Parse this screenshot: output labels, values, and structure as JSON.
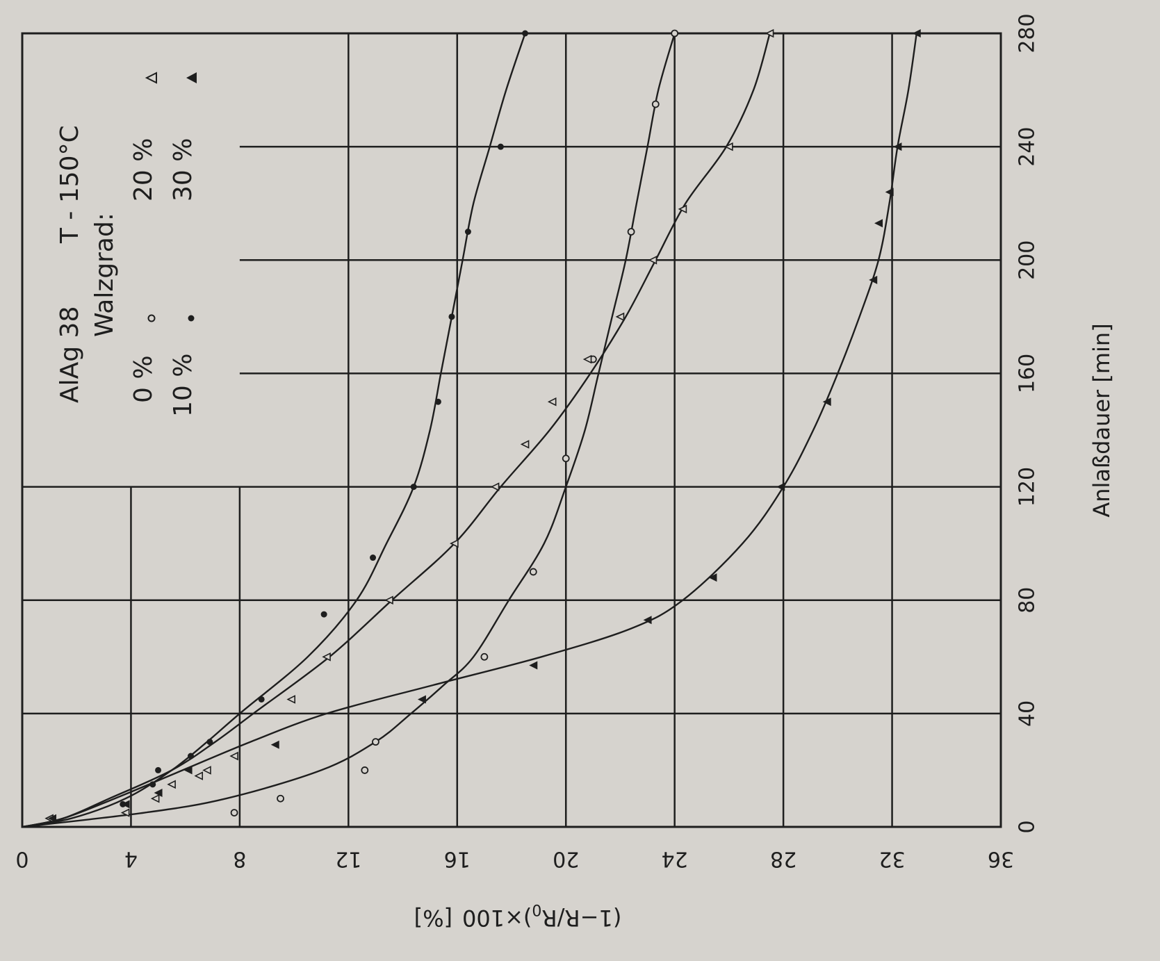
{
  "chart_data": {
    "type": "line",
    "orientation": "rotated 90° clockwise (x axis runs top-to-bottom on the right edge, y axis runs left-to-right at bottom)",
    "xlabel": "Anlaßdauer [min]",
    "ylabel": "(1-R/R0)×100 [%]",
    "ylabel_parts": {
      "main": "(1−R/R",
      "sub": "0",
      "tail": ")×100",
      "unit": "[%]"
    },
    "xlim": [
      0,
      280
    ],
    "ylim": [
      0,
      36
    ],
    "xticks": [
      "0",
      "40",
      "80",
      "120",
      "160",
      "200",
      "240",
      "280"
    ],
    "yticks": [
      "0",
      "4",
      "8",
      "12",
      "16",
      "20",
      "24",
      "28",
      "32",
      "36"
    ],
    "grid": "partial (lower-left corner region of low y / low x is open for legend)",
    "legend": {
      "title_line1": "AlAg 38",
      "temp": "T - 150°C",
      "subtitle": "Walzgrad:",
      "entries": [
        {
          "label": "0 %",
          "marker": "open-circle"
        },
        {
          "label": "10 %",
          "marker": "filled-circle"
        },
        {
          "label": "20 %",
          "marker": "open-triangle"
        },
        {
          "label": "30 %",
          "marker": "filled-triangle"
        }
      ]
    },
    "series": [
      {
        "name": "0 %",
        "marker": "open-circle",
        "curve": [
          [
            0,
            0
          ],
          [
            5,
            4.5
          ],
          [
            10,
            7.5
          ],
          [
            20,
            11
          ],
          [
            30,
            13
          ],
          [
            40,
            14.3
          ],
          [
            50,
            15.5
          ],
          [
            60,
            16.6
          ],
          [
            80,
            17.9
          ],
          [
            100,
            19.2
          ],
          [
            120,
            20
          ],
          [
            140,
            20.7
          ],
          [
            160,
            21.2
          ],
          [
            180,
            21.7
          ],
          [
            200,
            22.2
          ],
          [
            220,
            22.6
          ],
          [
            240,
            23
          ],
          [
            260,
            23.4
          ],
          [
            280,
            24
          ]
        ],
        "points": [
          [
            5,
            7.8
          ],
          [
            10,
            9.5
          ],
          [
            20,
            12.6
          ],
          [
            30,
            13
          ],
          [
            60,
            17
          ],
          [
            90,
            18.8
          ],
          [
            130,
            20
          ],
          [
            165,
            21
          ],
          [
            210,
            22.4
          ],
          [
            255,
            23.3
          ],
          [
            280,
            24
          ]
        ]
      },
      {
        "name": "10 %",
        "marker": "filled-circle",
        "curve": [
          [
            0,
            0
          ],
          [
            3,
            1.8
          ],
          [
            10,
            3.8
          ],
          [
            20,
            5.5
          ],
          [
            30,
            6.8
          ],
          [
            40,
            8
          ],
          [
            60,
            10.5
          ],
          [
            80,
            12.3
          ],
          [
            100,
            13.4
          ],
          [
            120,
            14.4
          ],
          [
            140,
            15
          ],
          [
            160,
            15.4
          ],
          [
            180,
            15.8
          ],
          [
            200,
            16.2
          ],
          [
            220,
            16.6
          ],
          [
            240,
            17.2
          ],
          [
            260,
            17.8
          ],
          [
            280,
            18.5
          ]
        ],
        "points": [
          [
            3,
            1.1
          ],
          [
            8,
            3.7
          ],
          [
            15,
            4.8
          ],
          [
            20,
            5
          ],
          [
            25,
            6.2
          ],
          [
            30,
            6.9
          ],
          [
            45,
            8.8
          ],
          [
            75,
            11.1
          ],
          [
            95,
            12.9
          ],
          [
            120,
            14.4
          ],
          [
            150,
            15.3
          ],
          [
            180,
            15.8
          ],
          [
            210,
            16.4
          ],
          [
            240,
            17.6
          ],
          [
            280,
            18.5
          ]
        ]
      },
      {
        "name": "20 %",
        "marker": "open-triangle",
        "curve": [
          [
            0,
            0
          ],
          [
            3,
            1.5
          ],
          [
            10,
            3.2
          ],
          [
            20,
            5.5
          ],
          [
            30,
            7.1
          ],
          [
            40,
            8.5
          ],
          [
            60,
            11.3
          ],
          [
            80,
            13.6
          ],
          [
            100,
            15.9
          ],
          [
            120,
            17.6
          ],
          [
            140,
            19.4
          ],
          [
            160,
            20.9
          ],
          [
            180,
            22.2
          ],
          [
            200,
            23.3
          ],
          [
            220,
            24.4
          ],
          [
            240,
            25.9
          ],
          [
            260,
            26.9
          ],
          [
            280,
            27.5
          ]
        ],
        "points": [
          [
            3,
            1
          ],
          [
            5,
            3.8
          ],
          [
            10,
            4.9
          ],
          [
            15,
            5.5
          ],
          [
            18,
            6.5
          ],
          [
            20,
            6.8
          ],
          [
            25,
            7.8
          ],
          [
            45,
            9.9
          ],
          [
            60,
            11.2
          ],
          [
            80,
            13.5
          ],
          [
            100,
            15.9
          ],
          [
            120,
            17.4
          ],
          [
            135,
            18.5
          ],
          [
            150,
            19.5
          ],
          [
            165,
            20.8
          ],
          [
            180,
            22
          ],
          [
            200,
            23.2
          ],
          [
            218,
            24.3
          ],
          [
            240,
            26
          ],
          [
            280,
            27.5
          ]
        ]
      },
      {
        "name": "30 %",
        "marker": "filled-triangle",
        "curve": [
          [
            0,
            0
          ],
          [
            3,
            1.5
          ],
          [
            10,
            3.4
          ],
          [
            20,
            5.9
          ],
          [
            30,
            8.4
          ],
          [
            40,
            11.2
          ],
          [
            50,
            15.1
          ],
          [
            60,
            19.1
          ],
          [
            70,
            22.4
          ],
          [
            80,
            24.3
          ],
          [
            100,
            26.5
          ],
          [
            120,
            28
          ],
          [
            140,
            29.1
          ],
          [
            160,
            30
          ],
          [
            180,
            30.8
          ],
          [
            200,
            31.5
          ],
          [
            220,
            31.9
          ],
          [
            240,
            32.2
          ],
          [
            260,
            32.6
          ],
          [
            280,
            32.9
          ]
        ],
        "points": [
          [
            3,
            1.1
          ],
          [
            8,
            3.8
          ],
          [
            12,
            5
          ],
          [
            20,
            6.1
          ],
          [
            29,
            9.3
          ],
          [
            45,
            14.7
          ],
          [
            57,
            18.8
          ],
          [
            73,
            23
          ],
          [
            88,
            25.4
          ],
          [
            120,
            27.9
          ],
          [
            150,
            29.6
          ],
          [
            193,
            31.3
          ],
          [
            213,
            31.5
          ],
          [
            224,
            31.9
          ],
          [
            240,
            32.2
          ],
          [
            280,
            32.9
          ]
        ]
      }
    ]
  }
}
